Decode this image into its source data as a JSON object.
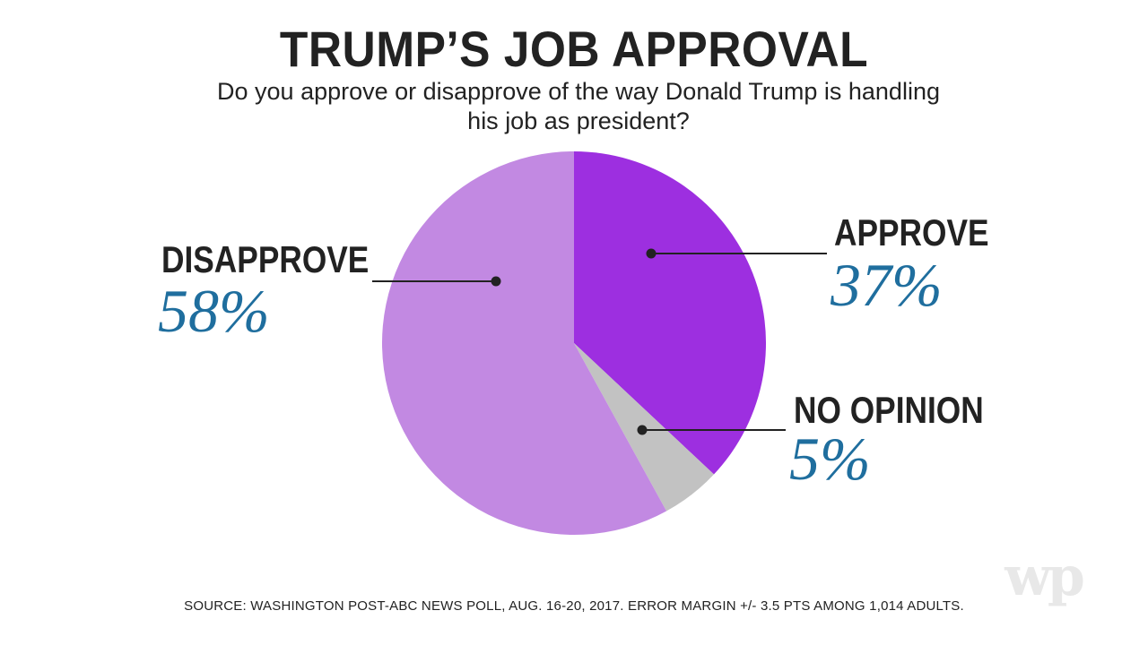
{
  "title": "TRUMP’S JOB APPROVAL",
  "subtitle": "Do you approve or disapprove of the way Donald Trump is handling his job as president?",
  "source": "SOURCE: WASHINGTON POST-ABC NEWS POLL, AUG. 16-20, 2017. ERROR MARGIN +/- 3.5 PTS AMONG 1,014 ADULTS.",
  "logo_text": "wp",
  "chart_data": {
    "type": "pie",
    "title": "TRUMP’S JOB APPROVAL",
    "subtitle": "Do you approve or disapprove of the way Donald Trump is handling his job as president?",
    "categories": [
      "APPROVE",
      "NO OPINION",
      "DISAPPROVE"
    ],
    "values": [
      37,
      5,
      58
    ],
    "value_labels": [
      "37%",
      "5%",
      "58%"
    ],
    "colors": [
      "#9d2fe0",
      "#c2c2c2",
      "#c289e2"
    ],
    "start": "12 o'clock, clockwise"
  }
}
